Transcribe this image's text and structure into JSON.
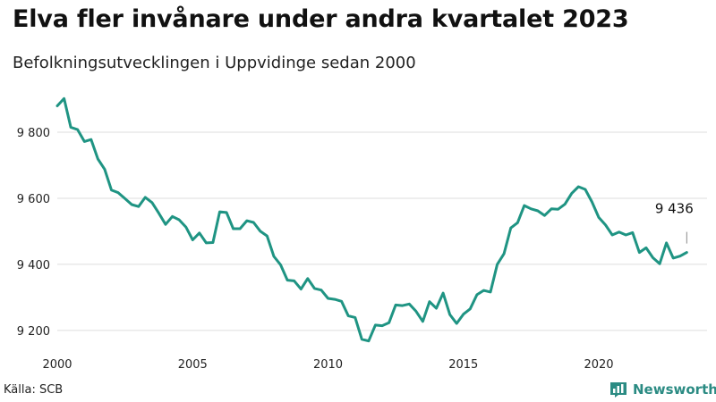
{
  "header": {
    "title": "Elva fler invånare under andra kvartalet 2023",
    "subtitle": "Befolkningsutvecklingen i Uppvidinge sedan 2000"
  },
  "footer": {
    "source": "Källa: SCB",
    "brand": "Newsworthy"
  },
  "chart_data": {
    "type": "line",
    "title": "Elva fler invånare under andra kvartalet 2023",
    "subtitle": "Befolkningsutvecklingen i Uppvidinge sedan 2000",
    "xlabel": "",
    "ylabel": "",
    "xlim": [
      2000,
      2024
    ],
    "ylim": [
      9140,
      9930
    ],
    "x_ticks": [
      2000,
      2005,
      2010,
      2015,
      2020
    ],
    "y_ticks": [
      9200,
      9400,
      9600,
      9800
    ],
    "y_tick_labels": [
      "9 200",
      "9 400",
      "9 600",
      "9 800"
    ],
    "grid": "horizontal",
    "line_color": "#1f9483",
    "series": [
      {
        "x": [
          2000.0,
          2000.25,
          2000.5,
          2000.75,
          2001.0,
          2001.25,
          2001.5,
          2001.75,
          2002.0,
          2002.25,
          2002.5,
          2002.75,
          2003.0,
          2003.25,
          2003.5,
          2003.75,
          2004.0,
          2004.25,
          2004.5,
          2004.75,
          2005.0,
          2005.25,
          2005.5,
          2005.75,
          2006.0,
          2006.25,
          2006.5,
          2006.75,
          2007.0,
          2007.25,
          2007.5,
          2007.75,
          2008.0,
          2008.25,
          2008.5,
          2008.75,
          2009.0,
          2009.25,
          2009.5,
          2009.75,
          2010.0,
          2010.25,
          2010.5,
          2010.75,
          2011.0,
          2011.25,
          2011.5,
          2011.75,
          2012.0,
          2012.25,
          2012.5,
          2012.75,
          2013.0,
          2013.25,
          2013.5,
          2013.75,
          2014.0,
          2014.25,
          2014.5,
          2014.75,
          2015.0,
          2015.25,
          2015.5,
          2015.75,
          2016.0,
          2016.25,
          2016.5,
          2016.75,
          2017.0,
          2017.25,
          2017.5,
          2017.75,
          2018.0,
          2018.25,
          2018.5,
          2018.75,
          2019.0,
          2019.25,
          2019.5,
          2019.75,
          2020.0,
          2020.25,
          2020.5,
          2020.75,
          2021.0,
          2021.25,
          2021.5,
          2021.75,
          2022.0,
          2022.25,
          2022.5,
          2022.75,
          2023.0,
          2023.25
        ],
        "values": [
          9880,
          9902,
          9815,
          9808,
          9772,
          9778,
          9719,
          9688,
          9625,
          9617,
          9599,
          9581,
          9575,
          9603,
          9587,
          9555,
          9521,
          9545,
          9535,
          9513,
          9474,
          9495,
          9465,
          9466,
          9559,
          9557,
          9508,
          9508,
          9532,
          9527,
          9500,
          9486,
          9424,
          9398,
          9352,
          9350,
          9325,
          9357,
          9327,
          9322,
          9297,
          9294,
          9288,
          9244,
          9239,
          9173,
          9168,
          9216,
          9214,
          9223,
          9277,
          9275,
          9280,
          9258,
          9227,
          9287,
          9267,
          9313,
          9248,
          9221,
          9249,
          9265,
          9308,
          9321,
          9316,
          9400,
          9432,
          9510,
          9526,
          9578,
          9568,
          9562,
          9548,
          9568,
          9567,
          9582,
          9615,
          9635,
          9627,
          9589,
          9542,
          9519,
          9489,
          9498,
          9489,
          9496,
          9436,
          9450,
          9420,
          9402,
          9465,
          9419,
          9425,
          9436
        ]
      }
    ],
    "annotations": [
      {
        "x": 2023.25,
        "y": 9436,
        "text": "9 436"
      }
    ]
  }
}
